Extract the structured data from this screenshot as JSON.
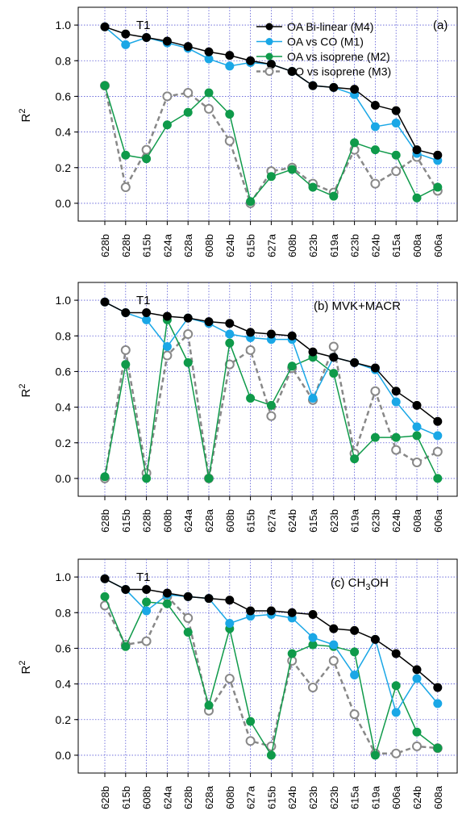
{
  "chart_data": [
    {
      "type": "line",
      "panel_label": "(a)",
      "subtitle": "",
      "corner_label": "T1",
      "ylabel": "R",
      "ylabel_sup": "2",
      "ylim": [
        -0.1,
        1.1
      ],
      "yticks": [
        "0.0",
        "0.2",
        "0.4",
        "0.6",
        "0.8",
        "1.0"
      ],
      "grid": true,
      "legend_position": "top-right",
      "categories": [
        "628b",
        "628b",
        "615b",
        "624a",
        "628a",
        "608b",
        "624b",
        "615b",
        "627a",
        "608b",
        "623b",
        "619a",
        "623b",
        "624b",
        "615a",
        "608a",
        "606a"
      ],
      "series": [
        {
          "key": "M4",
          "name": "OA Bi-linear (M4)",
          "color": "#000000",
          "marker": "filled",
          "dash": false,
          "values": [
            0.99,
            0.95,
            0.93,
            0.91,
            0.88,
            0.85,
            0.83,
            0.8,
            0.78,
            0.74,
            0.66,
            0.65,
            0.64,
            0.55,
            0.52,
            0.3,
            0.27
          ]
        },
        {
          "key": "M1",
          "name": "OA vs CO (M1)",
          "color": "#1aa7e6",
          "marker": "filled",
          "dash": false,
          "values": [
            0.99,
            0.89,
            0.93,
            0.9,
            0.87,
            0.81,
            0.77,
            0.79,
            0.78,
            0.74,
            0.66,
            0.65,
            0.61,
            0.43,
            0.45,
            0.28,
            0.24
          ]
        },
        {
          "key": "M2",
          "name": "OA vs isoprene (M2)",
          "color": "#0f9a4a",
          "marker": "filled",
          "dash": false,
          "values": [
            0.66,
            0.27,
            0.25,
            0.44,
            0.51,
            0.62,
            0.5,
            0.01,
            0.15,
            0.19,
            0.09,
            0.04,
            0.34,
            0.3,
            0.27,
            0.03,
            0.09
          ]
        },
        {
          "key": "M3",
          "name": "CO vs isoprene (M3)",
          "color": "#888888",
          "marker": "open",
          "dash": true,
          "values": [
            0.66,
            0.09,
            0.3,
            0.6,
            0.62,
            0.53,
            0.35,
            0.0,
            0.18,
            0.2,
            0.11,
            0.06,
            0.3,
            0.11,
            0.18,
            0.26,
            0.07
          ]
        }
      ]
    },
    {
      "type": "line",
      "panel_label": "(b)",
      "subtitle": "MVK+MACR",
      "corner_label": "T1",
      "ylabel": "R",
      "ylabel_sup": "2",
      "ylim": [
        -0.1,
        1.1
      ],
      "yticks": [
        "0.0",
        "0.2",
        "0.4",
        "0.6",
        "0.8",
        "1.0"
      ],
      "grid": true,
      "categories": [
        "628b",
        "615b",
        "628b",
        "608b",
        "624a",
        "628a",
        "608b",
        "615b",
        "627a",
        "624b",
        "615a",
        "623b",
        "619a",
        "623b",
        "624b",
        "608a",
        "606a"
      ],
      "series": [
        {
          "key": "M4",
          "color": "#000000",
          "marker": "filled",
          "dash": false,
          "values": [
            0.99,
            0.93,
            0.93,
            0.91,
            0.9,
            0.88,
            0.87,
            0.82,
            0.81,
            0.8,
            0.71,
            0.68,
            0.65,
            0.62,
            0.49,
            0.41,
            0.32
          ]
        },
        {
          "key": "M1",
          "color": "#1aa7e6",
          "marker": "filled",
          "dash": false,
          "values": [
            0.99,
            0.93,
            0.89,
            0.74,
            0.9,
            0.87,
            0.81,
            0.79,
            0.78,
            0.78,
            0.45,
            0.68,
            0.65,
            0.61,
            0.43,
            0.29,
            0.24
          ]
        },
        {
          "key": "M2",
          "color": "#0f9a4a",
          "marker": "filled",
          "dash": false,
          "values": [
            0.01,
            0.64,
            0.0,
            0.89,
            0.65,
            0.0,
            0.76,
            0.45,
            0.41,
            0.63,
            0.68,
            0.59,
            0.11,
            0.23,
            0.23,
            0.24,
            0.0
          ]
        },
        {
          "key": "M3",
          "color": "#888888",
          "marker": "open",
          "dash": true,
          "values": [
            0.0,
            0.72,
            0.03,
            0.69,
            0.81,
            0.0,
            0.64,
            0.72,
            0.35,
            0.62,
            0.44,
            0.74,
            0.14,
            0.49,
            0.16,
            0.09,
            0.15
          ]
        }
      ]
    },
    {
      "type": "line",
      "panel_label": "(c)",
      "subtitle": "CH",
      "subtitle_sub": "3",
      "subtitle_tail": "OH",
      "corner_label": "T1",
      "ylabel": "R",
      "ylabel_sup": "2",
      "ylim": [
        -0.1,
        1.1
      ],
      "yticks": [
        "0.0",
        "0.2",
        "0.4",
        "0.6",
        "0.8",
        "1.0"
      ],
      "grid": true,
      "categories": [
        "628b",
        "615b",
        "608b",
        "624a",
        "628b",
        "628a",
        "608b",
        "627a",
        "615b",
        "624b",
        "623b",
        "623b",
        "615a",
        "619a",
        "606a",
        "624b",
        "608a"
      ],
      "series": [
        {
          "key": "M4",
          "color": "#000000",
          "marker": "filled",
          "dash": false,
          "values": [
            0.99,
            0.93,
            0.93,
            0.91,
            0.89,
            0.88,
            0.87,
            0.81,
            0.81,
            0.8,
            0.79,
            0.71,
            0.7,
            0.65,
            0.57,
            0.48,
            0.38
          ]
        },
        {
          "key": "M1",
          "color": "#1aa7e6",
          "marker": "filled",
          "dash": false,
          "values": [
            0.99,
            0.93,
            0.81,
            0.9,
            0.89,
            0.88,
            0.74,
            0.78,
            0.79,
            0.77,
            0.66,
            0.62,
            0.45,
            0.65,
            0.24,
            0.43,
            0.29
          ]
        },
        {
          "key": "M2",
          "color": "#0f9a4a",
          "marker": "filled",
          "dash": false,
          "values": [
            0.89,
            0.61,
            0.86,
            0.85,
            0.69,
            0.28,
            0.71,
            0.19,
            0.0,
            0.57,
            0.62,
            0.61,
            0.58,
            0.0,
            0.39,
            0.13,
            0.04
          ]
        },
        {
          "key": "M3",
          "color": "#888888",
          "marker": "open",
          "dash": true,
          "values": [
            0.84,
            0.62,
            0.64,
            0.89,
            0.77,
            0.25,
            0.43,
            0.08,
            0.05,
            0.53,
            0.38,
            0.53,
            0.23,
            0.01,
            0.01,
            0.05,
            0.04
          ]
        }
      ]
    }
  ]
}
